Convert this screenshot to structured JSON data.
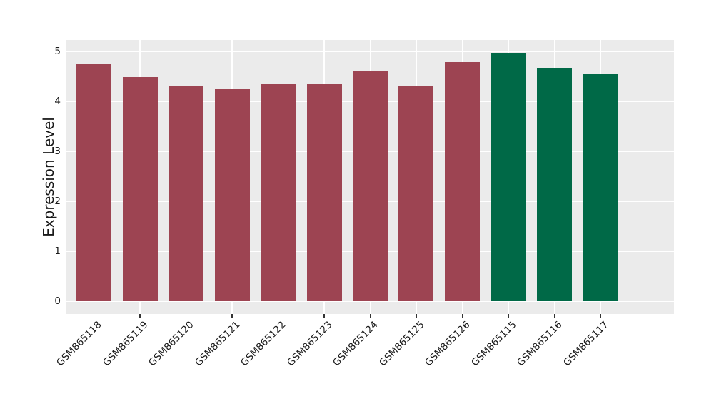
{
  "chart_data": {
    "type": "bar",
    "title": "",
    "xlabel": "",
    "ylabel": "Expression Level",
    "categories": [
      "GSM865118",
      "GSM865119",
      "GSM865120",
      "GSM865121",
      "GSM865122",
      "GSM865123",
      "GSM865124",
      "GSM865125",
      "GSM865126",
      "GSM865115",
      "GSM865116",
      "GSM865117"
    ],
    "values": [
      4.73,
      4.48,
      4.31,
      4.23,
      4.33,
      4.33,
      4.59,
      4.31,
      4.78,
      4.96,
      4.67,
      4.53
    ],
    "groups": [
      "groupA",
      "groupA",
      "groupA",
      "groupA",
      "groupA",
      "groupA",
      "groupA",
      "groupA",
      "groupA",
      "groupB",
      "groupB",
      "groupB"
    ],
    "colors": {
      "groupA": "#9D4452",
      "groupB": "#006947",
      "panel_background": "#EBEBEB",
      "gridline": "#FFFFFF",
      "axis_text": "#1A1A1A",
      "tick_mark": "#333333"
    },
    "ylim": [
      0,
      5
    ],
    "yticks": [
      0,
      1,
      2,
      3,
      4,
      5
    ],
    "yticks_minor": [
      0.5,
      1.5,
      2.5,
      3.5,
      4.5
    ],
    "x_tick_rotation_deg": 45,
    "legend_position": "none",
    "grid": "horizontal major+minor, vertical major at category centers"
  }
}
